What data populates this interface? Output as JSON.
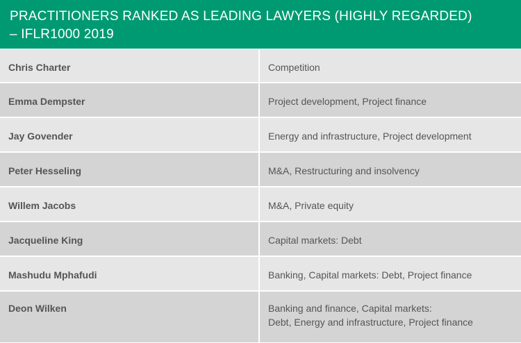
{
  "header": {
    "line1": "PRACTITIONERS RANKED AS LEADING LAWYERS (HIGHLY REGARDED)",
    "line2": "– IFLR1000 2019"
  },
  "rows": [
    {
      "name": "Chris Charter",
      "areas": "Competition"
    },
    {
      "name": "Emma Dempster",
      "areas": "Project development, Project finance"
    },
    {
      "name": "Jay Govender",
      "areas": "Energy and infrastructure, Project development"
    },
    {
      "name": "Peter Hesseling",
      "areas": "M&A, Restructuring and insolvency"
    },
    {
      "name": "Willem Jacobs",
      "areas": "M&A, Private equity"
    },
    {
      "name": "Jacqueline King",
      "areas": "Capital markets: Debt"
    },
    {
      "name": "Mashudu Mphafudi",
      "areas": "Banking, Capital markets: Debt, Project finance"
    },
    {
      "name": "Deon Wilken",
      "areas_line1": "Banking and finance, Capital markets:",
      "areas_line2": "Debt, Energy and infrastructure, Project finance"
    }
  ],
  "colors": {
    "header_bg": "#009a72",
    "row_light": "#e6e6e6",
    "row_dark": "#d4d4d4",
    "text": "#555555"
  }
}
